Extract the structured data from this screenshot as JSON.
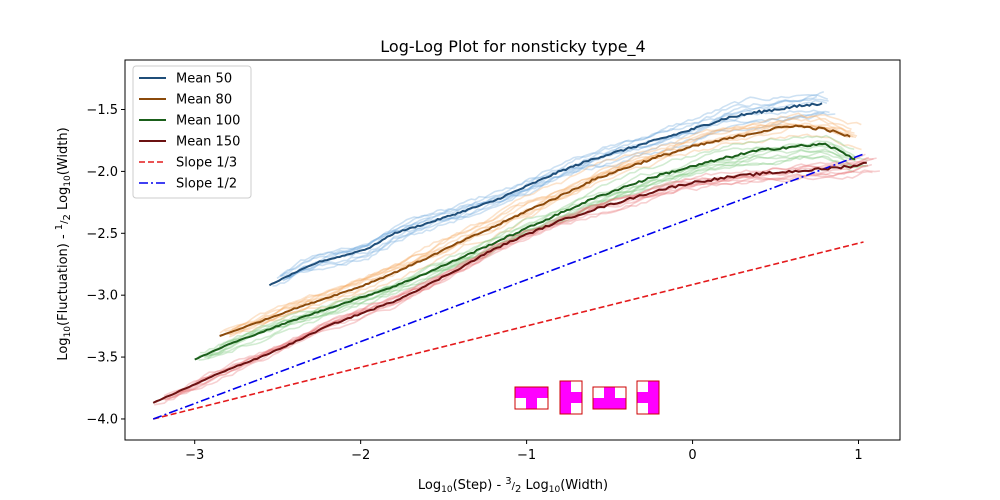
{
  "chart_data": {
    "type": "line",
    "title": "Log-Log Plot for nonsticky type_4",
    "xlabel": "Log10(Step) - 3/2 Log10(Width)",
    "ylabel": "Log10(Fluctuation) - 1/2 Log10(Width)",
    "xlim": [
      -3.42,
      1.25
    ],
    "ylim": [
      -4.17,
      -1.1
    ],
    "xticks": [
      -3,
      -2,
      -1,
      0,
      1
    ],
    "xtick_labels": [
      "−3",
      "−2",
      "−1",
      "0",
      "1"
    ],
    "yticks": [
      -4.0,
      -3.5,
      -3.0,
      -2.5,
      -2.0,
      -1.5
    ],
    "ytick_labels": [
      "−4.0",
      "−3.5",
      "−3.0",
      "−2.5",
      "−2.0",
      "−1.5"
    ],
    "legend_position": "top-left",
    "series": [
      {
        "name": "Mean 50",
        "color": "#1f4e79",
        "style": "solid",
        "faint_color": "#6fa8dc",
        "x": [
          -2.55,
          -2.4,
          -2.25,
          -2.1,
          -1.95,
          -1.8,
          -1.6,
          -1.4,
          -1.2,
          -1.0,
          -0.8,
          -0.6,
          -0.4,
          -0.2,
          0.0,
          0.2,
          0.4,
          0.6,
          0.78
        ],
        "y": [
          -2.92,
          -2.82,
          -2.73,
          -2.68,
          -2.62,
          -2.5,
          -2.42,
          -2.33,
          -2.24,
          -2.12,
          -2.0,
          -1.9,
          -1.82,
          -1.74,
          -1.66,
          -1.57,
          -1.52,
          -1.48,
          -1.45
        ]
      },
      {
        "name": "Mean 80",
        "color": "#8b4a0b",
        "style": "solid",
        "faint_color": "#f7b06b",
        "x": [
          -2.85,
          -2.6,
          -2.4,
          -2.2,
          -2.0,
          -1.8,
          -1.6,
          -1.4,
          -1.2,
          -1.0,
          -0.8,
          -0.6,
          -0.4,
          -0.2,
          0.0,
          0.2,
          0.4,
          0.6,
          0.8,
          0.95
        ],
        "y": [
          -3.33,
          -3.21,
          -3.11,
          -3.02,
          -2.93,
          -2.82,
          -2.7,
          -2.57,
          -2.45,
          -2.32,
          -2.2,
          -2.07,
          -1.97,
          -1.88,
          -1.8,
          -1.74,
          -1.68,
          -1.63,
          -1.66,
          -1.72
        ]
      },
      {
        "name": "Mean 100",
        "color": "#1a5e1a",
        "style": "solid",
        "faint_color": "#7fc97f",
        "x": [
          -3.0,
          -2.8,
          -2.6,
          -2.4,
          -2.2,
          -2.0,
          -1.8,
          -1.6,
          -1.4,
          -1.2,
          -1.0,
          -0.8,
          -0.6,
          -0.4,
          -0.2,
          0.0,
          0.2,
          0.4,
          0.6,
          0.8,
          0.98
        ],
        "y": [
          -3.52,
          -3.4,
          -3.3,
          -3.2,
          -3.11,
          -3.02,
          -2.93,
          -2.82,
          -2.7,
          -2.58,
          -2.46,
          -2.34,
          -2.22,
          -2.12,
          -2.03,
          -1.96,
          -1.89,
          -1.83,
          -1.8,
          -1.78,
          -1.9
        ]
      },
      {
        "name": "Mean 150",
        "color": "#6b1111",
        "style": "solid",
        "faint_color": "#e8797b",
        "x": [
          -3.25,
          -3.0,
          -2.8,
          -2.6,
          -2.4,
          -2.2,
          -2.0,
          -1.8,
          -1.6,
          -1.4,
          -1.2,
          -1.0,
          -0.8,
          -0.6,
          -0.4,
          -0.2,
          0.0,
          0.2,
          0.4,
          0.6,
          0.8,
          1.0,
          1.05
        ],
        "y": [
          -3.87,
          -3.72,
          -3.6,
          -3.5,
          -3.38,
          -3.25,
          -3.15,
          -3.05,
          -2.92,
          -2.78,
          -2.63,
          -2.51,
          -2.4,
          -2.31,
          -2.23,
          -2.15,
          -2.09,
          -2.05,
          -2.02,
          -2.0,
          -1.98,
          -1.95,
          -1.93
        ]
      },
      {
        "name": "Slope 1/3",
        "color": "#e41a1c",
        "style": "dashed",
        "x": [
          -3.25,
          1.03
        ],
        "y": [
          -4.0,
          -2.57
        ]
      },
      {
        "name": "Slope 1/2",
        "color": "#0000ee",
        "style": "dashdot",
        "x": [
          -3.25,
          1.03
        ],
        "y": [
          -4.0,
          -1.86
        ]
      }
    ]
  },
  "inset": {
    "description_icon": "tetromino-t-shapes-icon",
    "color": "#ff00ff",
    "border": "#cc0000"
  }
}
